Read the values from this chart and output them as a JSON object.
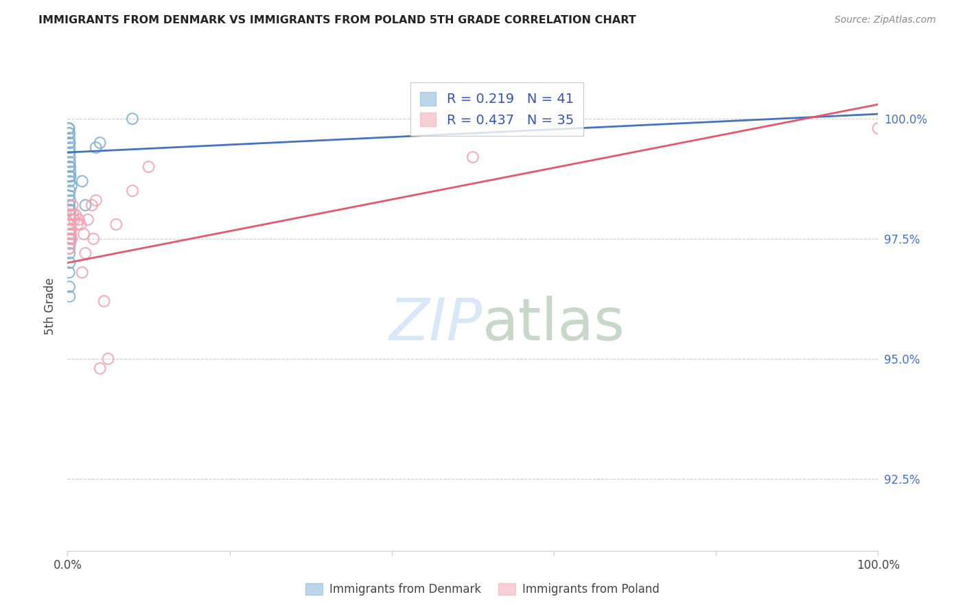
{
  "title": "IMMIGRANTS FROM DENMARK VS IMMIGRANTS FROM POLAND 5TH GRADE CORRELATION CHART",
  "source": "Source: ZipAtlas.com",
  "ylabel": "5th Grade",
  "xlim": [
    0.0,
    100.0
  ],
  "ylim": [
    91.0,
    101.2
  ],
  "yticks": [
    92.5,
    95.0,
    97.5,
    100.0
  ],
  "ytick_labels": [
    "92.5%",
    "95.0%",
    "97.5%",
    "100.0%"
  ],
  "denmark_R": 0.219,
  "denmark_N": 41,
  "poland_R": 0.437,
  "poland_N": 35,
  "denmark_color": "#7BAFD4",
  "poland_color": "#F4A0B0",
  "denmark_line_color": "#4472C4",
  "poland_line_color": "#E8566A",
  "legend_label_denmark": "Immigrants from Denmark",
  "legend_label_poland": "Immigrants from Poland",
  "background_color": "#ffffff",
  "grid_color": "#cccccc",
  "right_axis_color": "#4472C4",
  "watermark_color": "#D8E8F8",
  "title_color": "#222222",
  "source_color": "#888888",
  "denmark_x": [
    0.15,
    0.18,
    0.2,
    0.22,
    0.22,
    0.24,
    0.25,
    0.26,
    0.27,
    0.28,
    0.29,
    0.3,
    0.32,
    0.34,
    0.22,
    0.24,
    0.26,
    0.28,
    0.46,
    0.2,
    0.22,
    0.25,
    0.3,
    0.35,
    0.22,
    0.28,
    0.3,
    0.32,
    0.22,
    0.24,
    0.26,
    3.5,
    4.0,
    8.0,
    0.28,
    0.3,
    0.2,
    0.22,
    0.24,
    1.8,
    2.2
  ],
  "denmark_y": [
    99.8,
    99.8,
    99.7,
    99.7,
    99.6,
    99.5,
    99.5,
    99.4,
    99.3,
    99.2,
    99.1,
    99.0,
    98.9,
    98.8,
    99.0,
    98.8,
    98.7,
    98.5,
    98.6,
    98.4,
    98.2,
    98.1,
    98.3,
    98.0,
    97.8,
    97.6,
    97.8,
    97.5,
    97.3,
    97.2,
    97.0,
    99.4,
    99.5,
    100.0,
    98.1,
    97.4,
    96.8,
    96.5,
    96.3,
    98.7,
    98.2
  ],
  "poland_x": [
    0.2,
    0.22,
    0.24,
    0.26,
    0.3,
    0.35,
    0.4,
    0.45,
    0.5,
    0.6,
    0.7,
    0.8,
    1.0,
    1.2,
    1.4,
    1.6,
    2.0,
    2.5,
    3.0,
    3.5,
    4.0,
    5.0,
    8.0,
    10.0,
    50.0,
    100.0,
    0.26,
    0.3,
    0.32,
    0.38,
    1.8,
    2.2,
    4.5,
    3.2,
    6.0
  ],
  "poland_y": [
    97.5,
    97.3,
    97.6,
    97.4,
    97.8,
    98.0,
    97.9,
    97.7,
    97.5,
    98.2,
    98.0,
    97.9,
    98.0,
    97.8,
    97.9,
    97.8,
    97.6,
    97.9,
    98.2,
    98.3,
    94.8,
    95.0,
    98.5,
    99.0,
    99.2,
    99.8,
    97.8,
    97.6,
    97.7,
    97.6,
    96.8,
    97.2,
    96.2,
    97.5,
    97.8
  ]
}
